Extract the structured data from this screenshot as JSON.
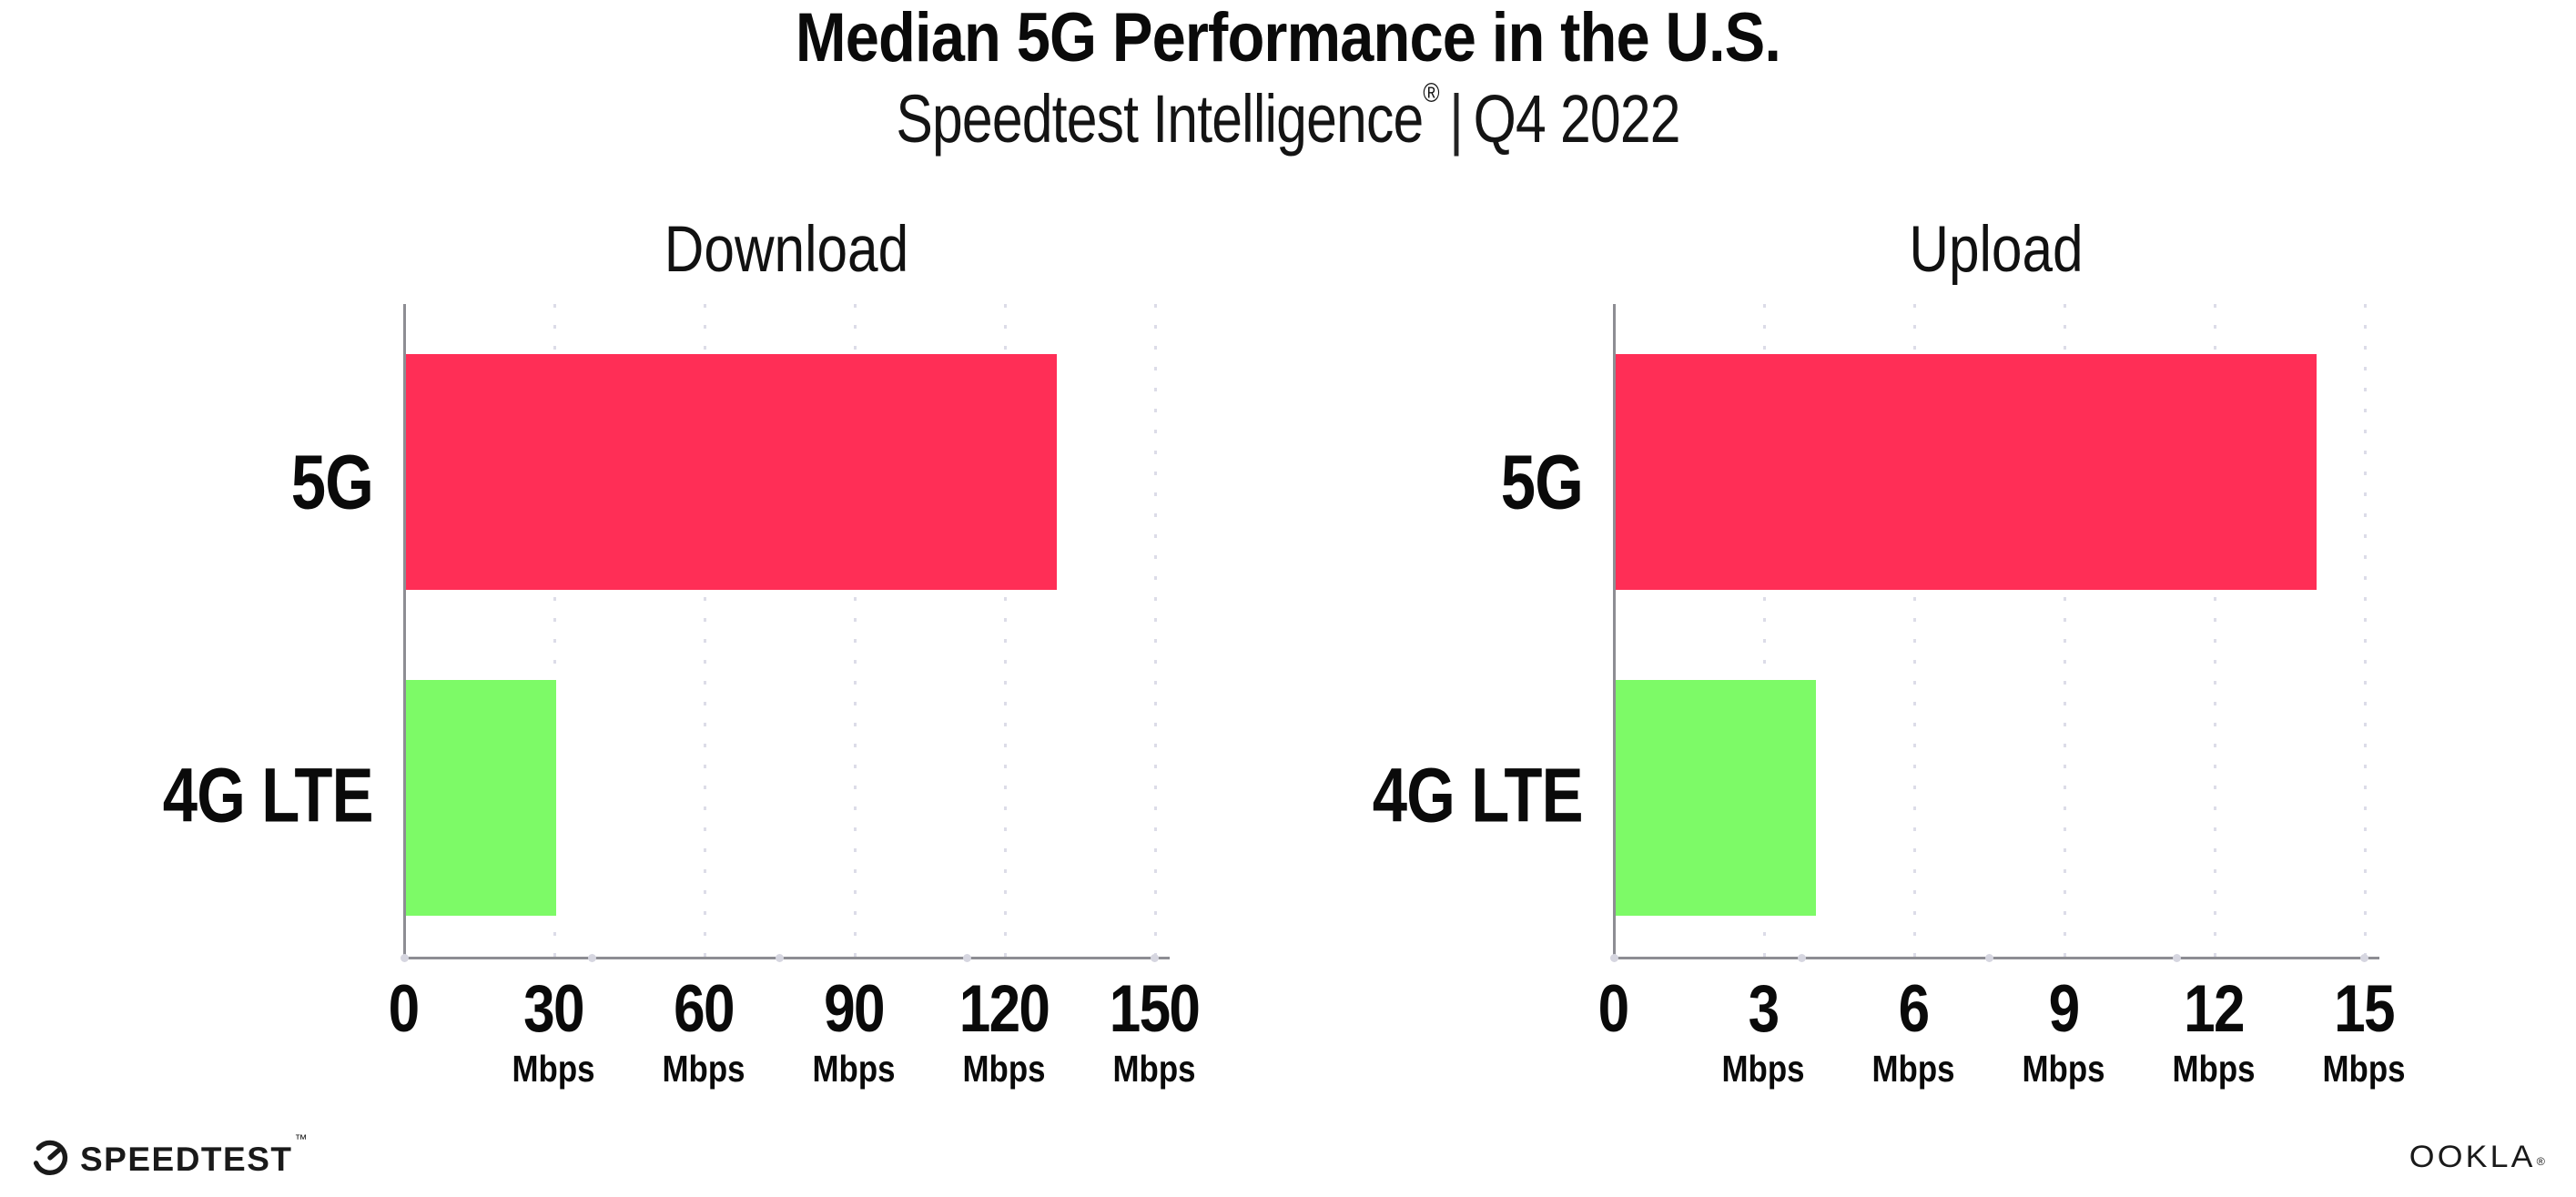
{
  "title": "Median 5G Performance in the U.S.",
  "subtitle": {
    "brand": "Speedtest Intelligence",
    "registered_mark": "®",
    "divider": "|",
    "period": "Q4 2022"
  },
  "chart_data": [
    {
      "type": "bar",
      "orientation": "horizontal",
      "title": "Download",
      "categories": [
        "5G",
        "4G LTE"
      ],
      "values": [
        130,
        30
      ],
      "unit": "Mbps",
      "xlim": [
        0,
        150
      ],
      "tick_step": 30,
      "grid": "dotted-vertical",
      "legend": "none",
      "bar_colors": [
        "#FF2E56",
        "#7DFA67"
      ],
      "ticks": [
        {
          "value": "0",
          "unit": ""
        },
        {
          "value": "30",
          "unit": "Mbps"
        },
        {
          "value": "60",
          "unit": "Mbps"
        },
        {
          "value": "90",
          "unit": "Mbps"
        },
        {
          "value": "120",
          "unit": "Mbps"
        },
        {
          "value": "150",
          "unit": "Mbps"
        }
      ]
    },
    {
      "type": "bar",
      "orientation": "horizontal",
      "title": "Upload",
      "categories": [
        "5G",
        "4G LTE"
      ],
      "values": [
        14,
        4
      ],
      "unit": "Mbps",
      "xlim": [
        0,
        15
      ],
      "tick_step": 3,
      "grid": "dotted-vertical",
      "legend": "none",
      "bar_colors": [
        "#FF2E56",
        "#7DFA67"
      ],
      "ticks": [
        {
          "value": "0",
          "unit": ""
        },
        {
          "value": "3",
          "unit": "Mbps"
        },
        {
          "value": "6",
          "unit": "Mbps"
        },
        {
          "value": "9",
          "unit": "Mbps"
        },
        {
          "value": "12",
          "unit": "Mbps"
        },
        {
          "value": "15",
          "unit": "Mbps"
        }
      ]
    }
  ],
  "colors": {
    "bar_5g": "#FF2E56",
    "bar_4g_lte": "#7DFA67",
    "axis": "#8D8D93",
    "gridline": "#DCDCE8",
    "text": "#0A0A0A"
  },
  "footer": {
    "speedtest_label": "SPEEDTEST",
    "speedtest_mark": "™",
    "ookla_label": "OOKLA",
    "ookla_mark": "®"
  }
}
